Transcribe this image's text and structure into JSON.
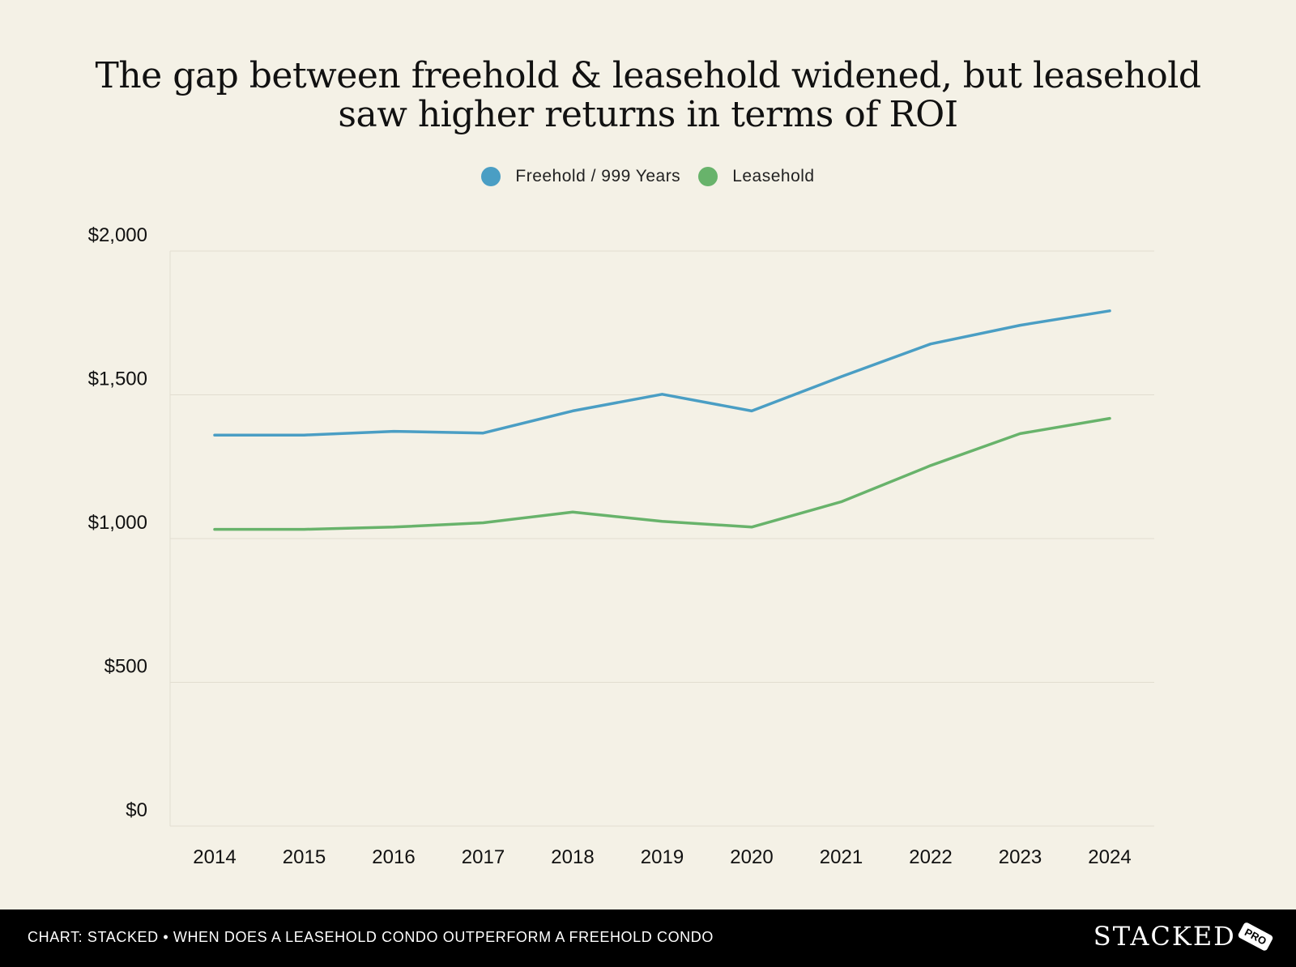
{
  "chart_data": {
    "type": "line",
    "title": "The gap between freehold & leasehold widened, but leasehold saw higher returns in terms of ROI",
    "categories": [
      "2014",
      "2015",
      "2016",
      "2017",
      "2018",
      "2019",
      "2020",
      "2021",
      "2022",
      "2023",
      "2024"
    ],
    "series": [
      {
        "name": "Freehold / 999 Years",
        "color": "#4a9ec4",
        "values": [
          1360,
          1360,
          1373,
          1367,
          1444,
          1502,
          1444,
          1563,
          1677,
          1742,
          1792
        ]
      },
      {
        "name": "Leasehold",
        "color": "#68b36b",
        "values": [
          1032,
          1032,
          1040,
          1055,
          1092,
          1060,
          1040,
          1128,
          1254,
          1365,
          1418
        ]
      }
    ],
    "xlabel": "",
    "ylabel": "",
    "ylim": [
      0,
      2000
    ],
    "yticks": [
      0,
      500,
      1000,
      1500,
      2000
    ],
    "ytick_labels": [
      "$0",
      "$500",
      "$1,000",
      "$1,500",
      "$2,000"
    ],
    "grid": true,
    "legend_position": "top-center"
  },
  "footer": {
    "caption": "CHART: STACKED • WHEN DOES A LEASEHOLD CONDO OUTPERFORM A FREEHOLD CONDO",
    "logo_text": "STACKED",
    "logo_badge": "PRO"
  }
}
